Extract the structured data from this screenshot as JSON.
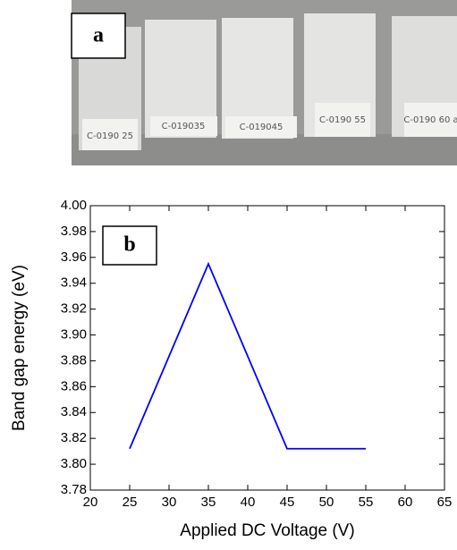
{
  "photo": {
    "label": "a",
    "samples": [
      "C-0190 25",
      "C-019035",
      "C-019045",
      "C-0190 55",
      "C-0190 60 a"
    ]
  },
  "chart_data": {
    "type": "line",
    "panel_label": "b",
    "x_label": "Applied DC Voltage (V)",
    "y_label": "Band gap energy (eV)",
    "x": [
      25,
      35,
      45,
      55
    ],
    "series": [
      {
        "name": null,
        "color": "#0000ff",
        "values": [
          3.812,
          3.955,
          3.812,
          3.812
        ]
      }
    ],
    "xlim": [
      20,
      65
    ],
    "xticks": [
      20,
      25,
      30,
      35,
      40,
      45,
      50,
      55,
      60,
      65
    ],
    "ylim": [
      3.78,
      4.0
    ],
    "yticks": [
      3.78,
      {
        "value": 3.8,
        "label": "3.80"
      },
      3.82,
      3.84,
      3.86,
      3.88,
      {
        "value": 3.9,
        "label": "3.90"
      },
      3.92,
      3.94,
      3.96,
      3.98,
      {
        "value": 4.0,
        "label": "4.00"
      }
    ]
  }
}
